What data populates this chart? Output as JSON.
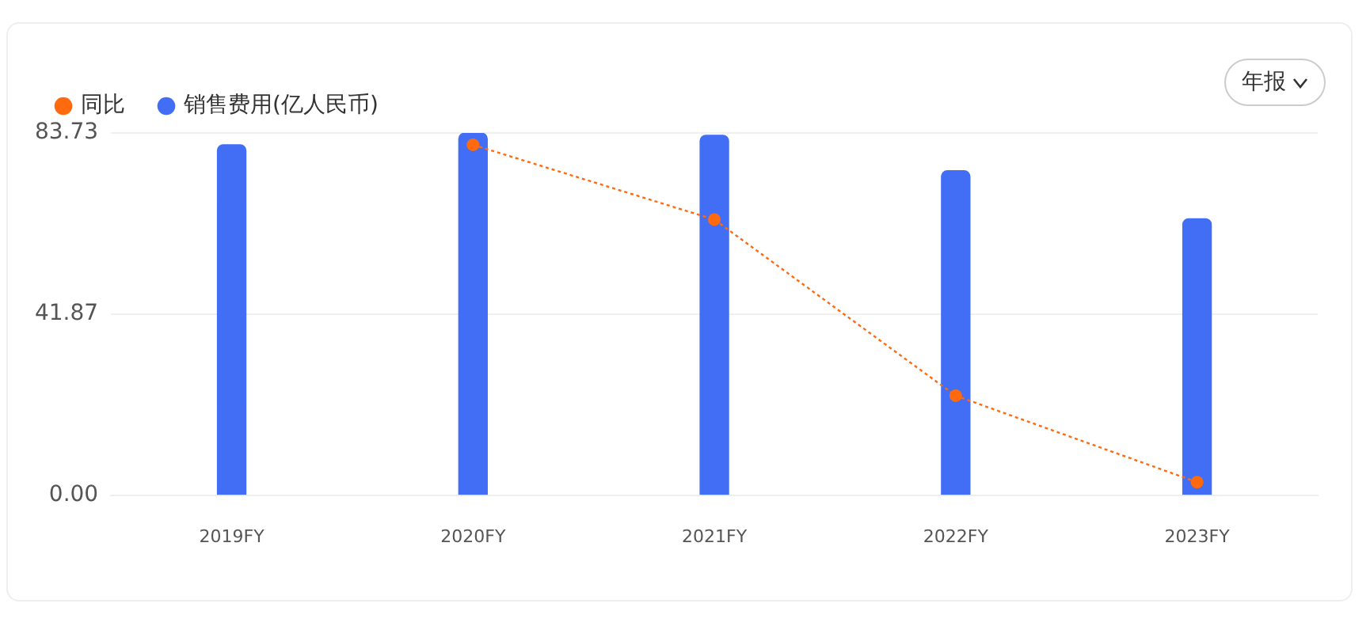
{
  "chart_data": {
    "type": "bar",
    "categories": [
      "2019FY",
      "2020FY",
      "2021FY",
      "2022FY",
      "2023FY"
    ],
    "series": [
      {
        "name": "销售费用(亿人民币)",
        "color": "#426ef6",
        "values": [
          81.0,
          83.7,
          83.2,
          75.0,
          63.9
        ]
      },
      {
        "name": "同比",
        "type": "line",
        "color": "#ff6a0f",
        "values": [
          null,
          81.0,
          63.7,
          23.0,
          3.0
        ]
      }
    ],
    "ylim": [
      0,
      83.73
    ],
    "yticks": [
      {
        "value": 0,
        "label": "0.00"
      },
      41.87,
      83.73
    ],
    "grid": "y",
    "legend": "top left",
    "marker": "circle",
    "line_style": "dotted",
    "annotations": [
      "年报"
    ]
  }
}
